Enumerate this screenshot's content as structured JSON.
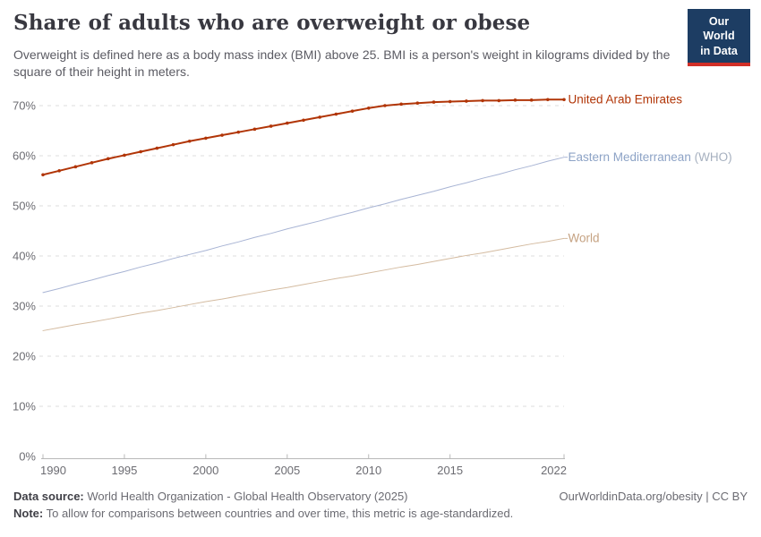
{
  "header": {
    "title": "Share of adults who are overweight or obese",
    "subtitle": "Overweight is defined here as a body mass index (BMI) above 25. BMI is a person's weight in kilograms divided by the square of their height in meters.",
    "logo": {
      "line1": "Our World",
      "line2": "in Data"
    }
  },
  "chart_data": {
    "type": "line",
    "title": "Share of adults who are overweight or obese",
    "xlabel": "",
    "ylabel": "",
    "ylim": [
      0,
      70
    ],
    "yticks": [
      0,
      10,
      20,
      30,
      40,
      50,
      60,
      70
    ],
    "ytick_suffix": "%",
    "xticks": [
      1990,
      1995,
      2000,
      2005,
      2010,
      2015,
      2022
    ],
    "grid": "horizontal-dashed",
    "legend_position": "right-of-line-end",
    "x": [
      1990,
      1991,
      1992,
      1993,
      1994,
      1995,
      1996,
      1997,
      1998,
      1999,
      2000,
      2001,
      2002,
      2003,
      2004,
      2005,
      2006,
      2007,
      2008,
      2009,
      2010,
      2011,
      2012,
      2013,
      2014,
      2015,
      2016,
      2017,
      2018,
      2019,
      2020,
      2021,
      2022
    ],
    "series": [
      {
        "name": "Eastern Mediterranean (WHO)",
        "color": "#a8b4d4",
        "label_parts": [
          {
            "text": "Eastern Mediterranean",
            "color": "#8da3c6"
          },
          {
            "text": " (WHO)",
            "color": "#a6b0bf"
          }
        ],
        "marker": false,
        "connector": true,
        "line_width": 1,
        "values": [
          32.7,
          33.5,
          34.4,
          35.2,
          36.1,
          36.9,
          37.8,
          38.6,
          39.5,
          40.3,
          41.1,
          42.0,
          42.8,
          43.7,
          44.5,
          45.4,
          46.2,
          47.0,
          47.9,
          48.7,
          49.6,
          50.4,
          51.3,
          52.1,
          52.9,
          53.8,
          54.6,
          55.5,
          56.3,
          57.2,
          58.0,
          58.9,
          59.7
        ]
      },
      {
        "name": "World",
        "color": "#d4bba0",
        "label_color": "#c5a282",
        "marker": false,
        "connector": true,
        "line_width": 1,
        "values": [
          25.1,
          25.7,
          26.3,
          26.8,
          27.4,
          28.0,
          28.6,
          29.1,
          29.7,
          30.3,
          30.9,
          31.4,
          32.0,
          32.6,
          33.2,
          33.7,
          34.3,
          34.9,
          35.5,
          36.0,
          36.6,
          37.2,
          37.8,
          38.3,
          38.9,
          39.5,
          40.1,
          40.6,
          41.2,
          41.8,
          42.4,
          42.9,
          43.5
        ]
      },
      {
        "name": "United Arab Emirates",
        "color": "#b13507",
        "label_color": "#b13507",
        "marker": true,
        "connector": false,
        "line_width": 2,
        "values": [
          56.2,
          57.0,
          57.8,
          58.6,
          59.4,
          60.1,
          60.8,
          61.5,
          62.2,
          62.9,
          63.5,
          64.1,
          64.7,
          65.3,
          65.9,
          66.5,
          67.1,
          67.7,
          68.3,
          68.9,
          69.5,
          70.0,
          70.3,
          70.5,
          70.7,
          70.8,
          70.9,
          71.0,
          71.0,
          71.1,
          71.1,
          71.2,
          71.2
        ]
      }
    ]
  },
  "axis_style": {
    "tick_label_color": "#6c6c72",
    "grid_color": "#dcdcdc",
    "baseline_color": "#b8b8b8"
  },
  "footer": {
    "data_source_label": "Data source:",
    "data_source_text": " World Health Organization - Global Health Observatory (2025)",
    "note_label": "Note:",
    "note_text": " To allow for comparisons between countries and over time, this metric is age-standardized.",
    "link": "OurWorldinData.org/obesity | CC BY"
  }
}
